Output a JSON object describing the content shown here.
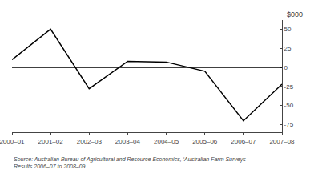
{
  "chart_data": {
    "type": "line",
    "categories": [
      "2000–01",
      "2001–02",
      "2002–03",
      "2003–04",
      "2004–05",
      "2005–06",
      "2006–07",
      "2007–08"
    ],
    "values": [
      10,
      50,
      -28,
      8,
      7,
      -5,
      -70,
      -22
    ],
    "color": "#000000",
    "ylabel": "$000",
    "ylim": [
      -85,
      62
    ],
    "yticks": [
      50,
      25,
      0,
      -25,
      -50,
      -75
    ],
    "hline": 0,
    "grid": false,
    "annotations": [
      "Source: Australian Bureau of Agricultural and Resource Economics, ‘Australian Farm Surveys",
      "Results 2006–07 to 2008–09."
    ]
  }
}
